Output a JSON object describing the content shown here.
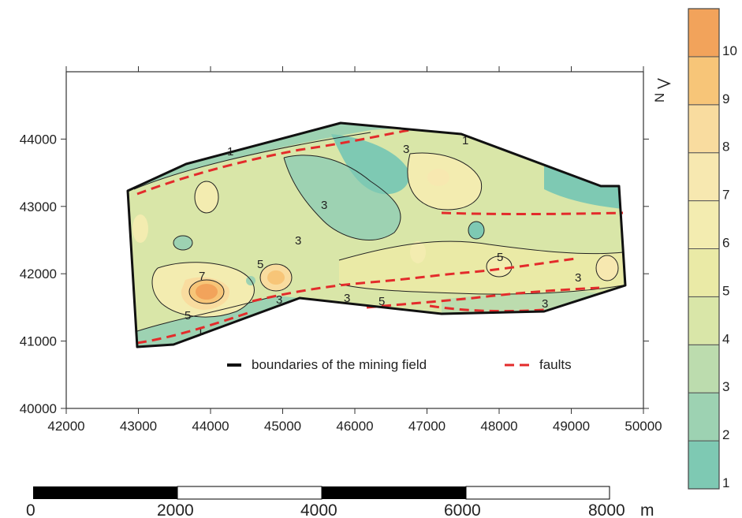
{
  "map": {
    "x_axis": {
      "min": 42000,
      "max": 50000,
      "ticks": [
        "42000",
        "43000",
        "44000",
        "45000",
        "46000",
        "47000",
        "48000",
        "49000",
        "50000"
      ]
    },
    "y_axis": {
      "min": 40000,
      "max": 45000,
      "ticks": [
        "40000",
        "41000",
        "42000",
        "43000",
        "44000"
      ]
    },
    "north_arrow_label": "N",
    "contour_labels": [
      "1",
      "1",
      "3",
      "3",
      "3",
      "3",
      "3",
      "3",
      "5",
      "5",
      "5",
      "5",
      "7",
      "3",
      "1"
    ],
    "legend": {
      "boundary_label": "boundaries of the mining field",
      "faults_label": "faults",
      "boundary_color": "#111111",
      "faults_color": "#e32b2b"
    }
  },
  "scale_bar": {
    "labels": [
      "0",
      "2000",
      "4000",
      "6000",
      "8000"
    ],
    "unit": "m"
  },
  "colorbar": {
    "labels": [
      "1",
      "2",
      "3",
      "4",
      "5",
      "6",
      "7",
      "8",
      "9",
      "10"
    ],
    "colors": [
      "#7ec9b3",
      "#9dd2b2",
      "#bcdcae",
      "#d9e6a8",
      "#eaeaa6",
      "#f3ecb0",
      "#f7e8b0",
      "#f9dc9f",
      "#f7c578",
      "#f2a35b"
    ]
  }
}
